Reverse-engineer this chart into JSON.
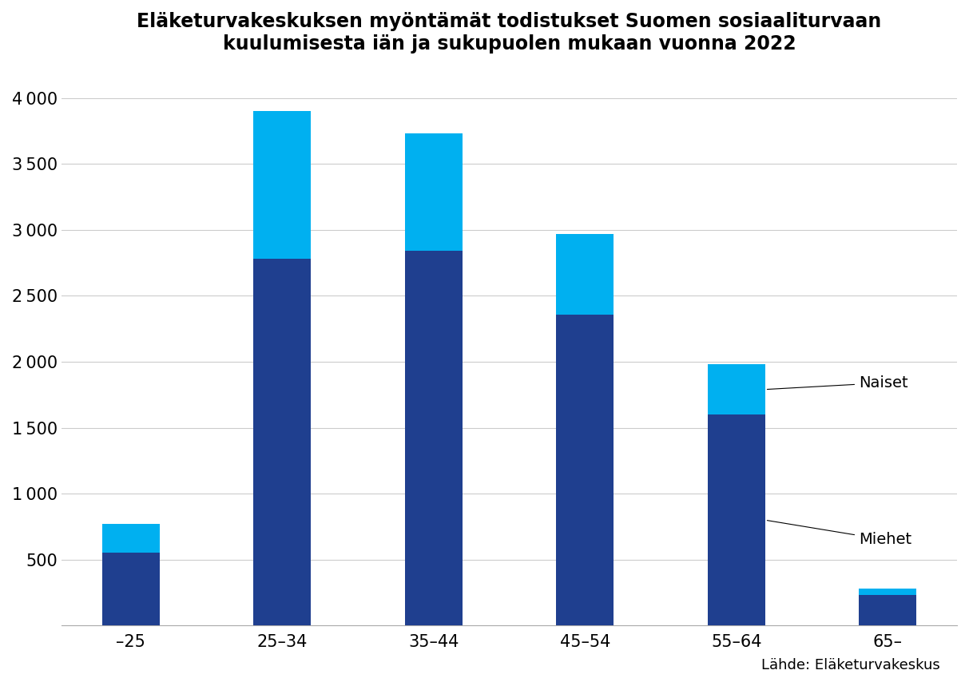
{
  "title": "Eläketurvakeskuksen myöntämät todistukset Suomen sosiaaliturvaan\nkuulumisesta iän ja sukupuolen mukaan vuonna 2022",
  "categories": [
    "–25",
    "25–34",
    "35–44",
    "45–54",
    "55–64",
    "65–"
  ],
  "miehet": [
    550,
    2780,
    2840,
    2360,
    1600,
    230
  ],
  "naiset": [
    220,
    1120,
    890,
    610,
    380,
    50
  ],
  "color_miehet": "#1f3f8f",
  "color_naiset": "#00b0f0",
  "ylim": [
    0,
    4200
  ],
  "yticks": [
    0,
    500,
    1000,
    1500,
    2000,
    2500,
    3000,
    3500,
    4000
  ],
  "source_text": "Lähde: Eläketurvakeskus",
  "legend_naiset": "Naiset",
  "legend_miehet": "Miehet",
  "background_color": "#ffffff",
  "title_fontsize": 17,
  "tick_fontsize": 15,
  "annot_fontsize": 14,
  "source_fontsize": 13,
  "bar_width": 0.38
}
